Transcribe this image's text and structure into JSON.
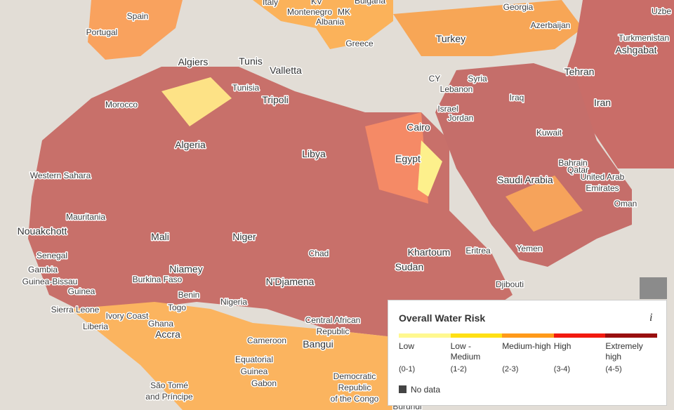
{
  "labels": [
    "Italy",
    "Bulgaria",
    "KV",
    "Montenegro",
    "MK",
    "Albania",
    "Spain",
    "Portugal",
    "Georgia",
    "Uzbe",
    "Azerbaijan",
    "Turkmenistan",
    "Ashgabat",
    "Turkey",
    "Greece",
    "Algiers",
    "Tunis",
    "Valletta",
    "CY",
    "Syria",
    "Tehran",
    "Tunisia",
    "Tripoli",
    "Lebanon",
    "Iraq",
    "Iran",
    "Morocco",
    "Israel",
    "Jordan",
    "Cairo",
    "Kuwait",
    "Algeria",
    "Libya",
    "Egypt",
    "Bahrain",
    "Qatar",
    "United Arab",
    "Emirates",
    "Western Sahara",
    "Saudi Arabia",
    "Oman",
    "Mauritania",
    "Nouakchott",
    "Mali",
    "Niger",
    "Khartoum",
    "Eritrea",
    "Chad",
    "Yemen",
    "Senegal",
    "Gambia",
    "Sudan",
    "Niamey",
    "Guinea-Bissau",
    "Burkina Faso",
    "N'Djamena",
    "Djibouti",
    "Guinea",
    "Benin",
    "Togo",
    "Nigeria",
    "Sierra Leone",
    "Ivory Coast",
    "Central African",
    "Republic",
    "Liberia",
    "Ghana",
    "Accra",
    "Cameroon",
    "Bangui",
    "Equatorial",
    "Guinea",
    "Gabon",
    "Democratic",
    "Republic",
    "of the Congo",
    "São Tomé",
    "and Príncipe",
    "Burundi"
  ],
  "legend": {
    "title": "Overall Water Risk",
    "info": "i",
    "items": [
      {
        "label": "Low",
        "range": "(0-1)",
        "color": "#fff88f"
      },
      {
        "label": "Low - Medium",
        "range": "(1-2)",
        "color": "#ffe014"
      },
      {
        "label": "Medium-high",
        "range": "(2-3)",
        "color": "#ff9a1a"
      },
      {
        "label": "High",
        "range": "(3-4)",
        "color": "#f21a0f"
      },
      {
        "label": "Extremely high",
        "range": "(4-5)",
        "color": "#990f0f"
      }
    ],
    "no_data": "No data"
  }
}
